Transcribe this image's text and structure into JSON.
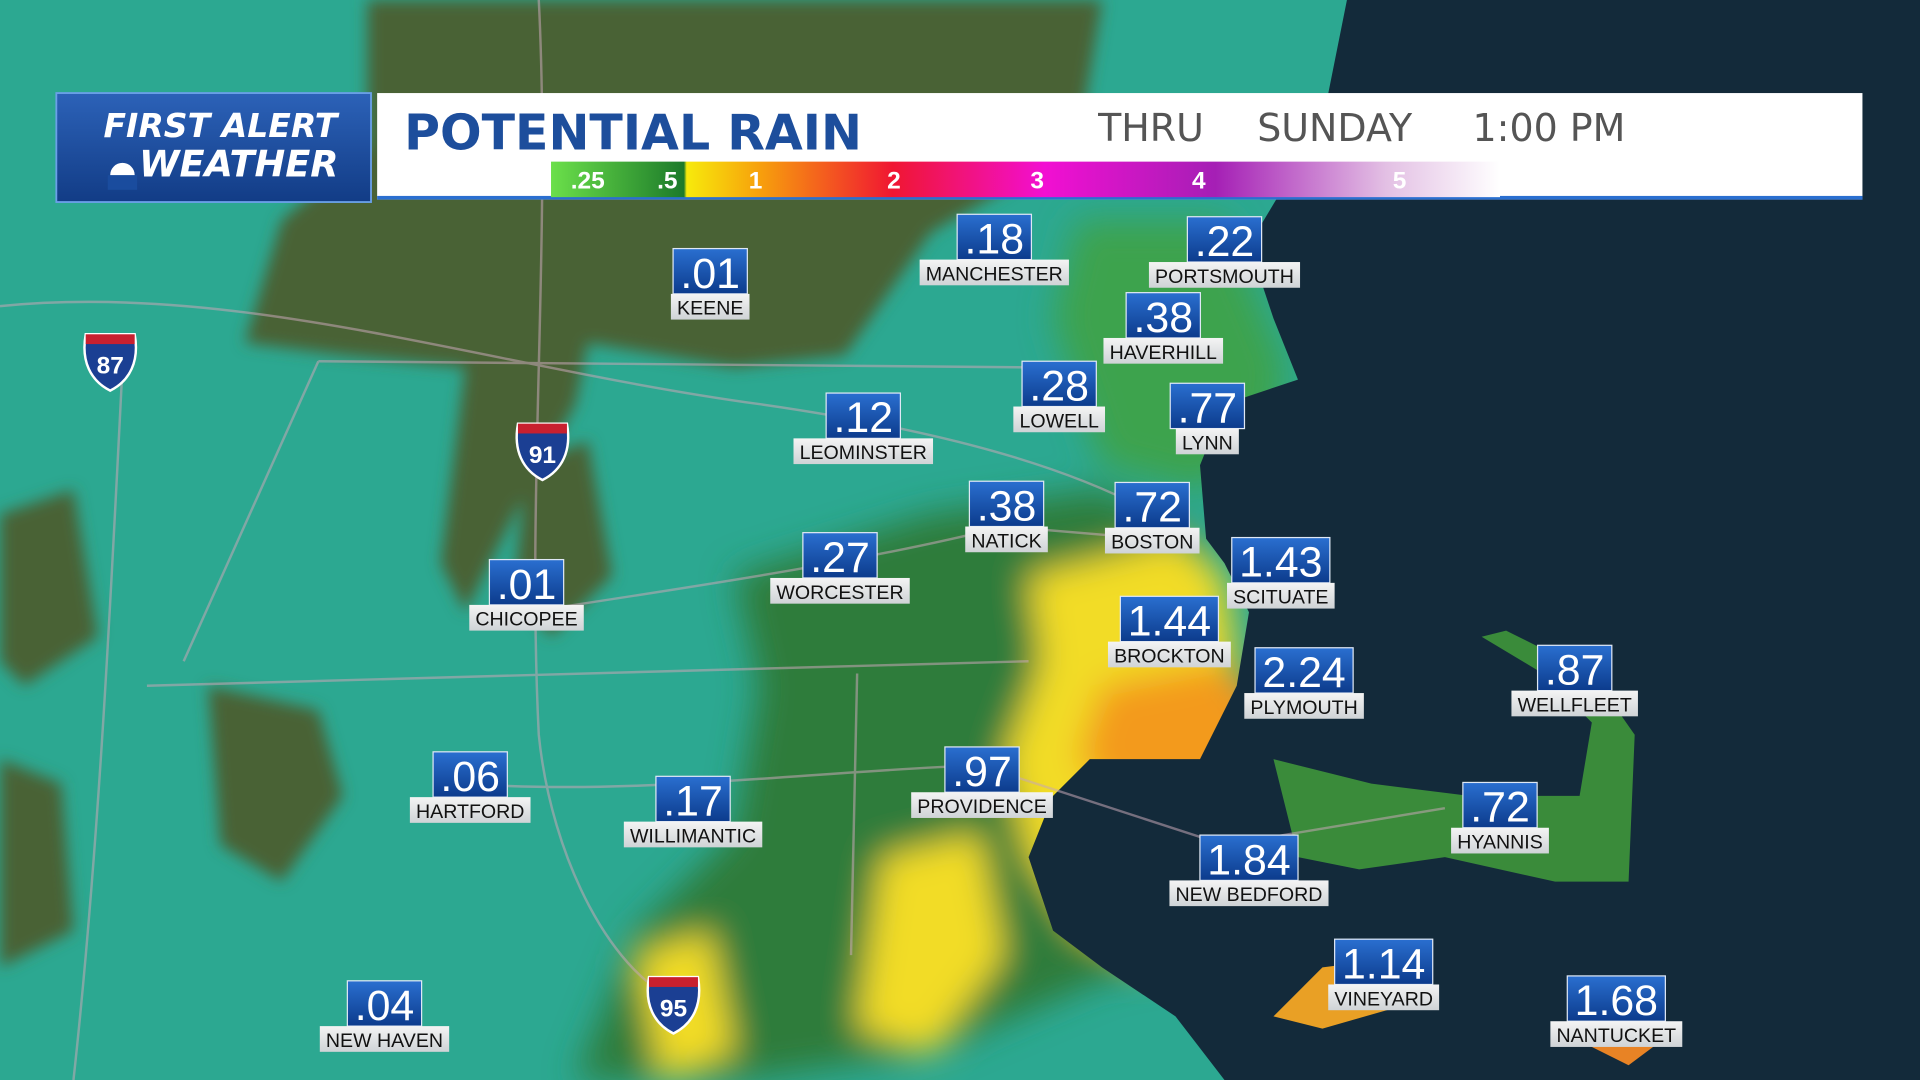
{
  "header": {
    "logo_top": "FIRST ALERT",
    "logo_bottom": "WEATHER",
    "title": "POTENTIAL RAIN",
    "thru": "THRU",
    "day": "SUNDAY",
    "time": "1:00 PM"
  },
  "legend": {
    "labels": [
      ".25",
      ".5",
      "1",
      "2",
      "3",
      "4",
      "5"
    ]
  },
  "shields": [
    "87",
    "91",
    "95"
  ],
  "cities": [
    {
      "name": "MANCHESTER",
      "amount": ".18"
    },
    {
      "name": "PORTSMOUTH",
      "amount": ".22"
    },
    {
      "name": "KEENE",
      "amount": ".01"
    },
    {
      "name": "HAVERHILL",
      "amount": ".38"
    },
    {
      "name": "LOWELL",
      "amount": ".28"
    },
    {
      "name": "LYNN",
      "amount": ".77"
    },
    {
      "name": "LEOMINSTER",
      "amount": ".12"
    },
    {
      "name": "NATICK",
      "amount": ".38"
    },
    {
      "name": "BOSTON",
      "amount": ".72"
    },
    {
      "name": "WORCESTER",
      "amount": ".27"
    },
    {
      "name": "SCITUATE",
      "amount": "1.43"
    },
    {
      "name": "CHICOPEE",
      "amount": ".01"
    },
    {
      "name": "BROCKTON",
      "amount": "1.44"
    },
    {
      "name": "PLYMOUTH",
      "amount": "2.24"
    },
    {
      "name": "WELLFLEET",
      "amount": ".87"
    },
    {
      "name": "HARTFORD",
      "amount": ".06"
    },
    {
      "name": "WILLIMANTIC",
      "amount": ".17"
    },
    {
      "name": "PROVIDENCE",
      "amount": ".97"
    },
    {
      "name": "HYANNIS",
      "amount": ".72"
    },
    {
      "name": "NEW BEDFORD",
      "amount": "1.84"
    },
    {
      "name": "VINEYARD",
      "amount": "1.14"
    },
    {
      "name": "NANTUCKET",
      "amount": "1.68"
    },
    {
      "name": "NEW HAVEN",
      "amount": ".04"
    }
  ]
}
